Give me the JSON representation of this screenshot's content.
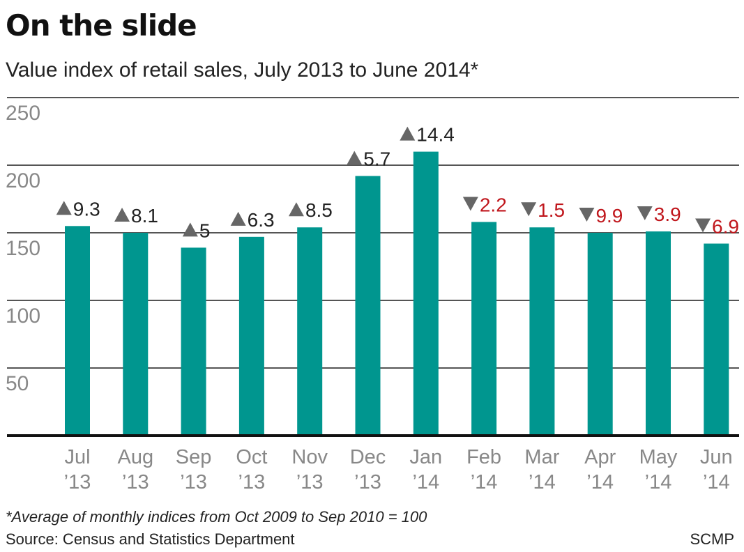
{
  "title": "On the slide",
  "subtitle": "Value index of retail sales, July 2013 to June 2014*",
  "footnote": "*Average of monthly indices from Oct 2009 to Sep 2010 = 100",
  "source": "Source: Census and Statistics Department",
  "credit": "SCMP",
  "colors": {
    "bar": "#00968f",
    "up_marker": "#666666",
    "down_marker": "#666666",
    "up_text": "#222222",
    "down_text": "#c0161c",
    "grid": "#555555",
    "axis_text": "#888888"
  },
  "chart_data": {
    "type": "bar",
    "categories": [
      [
        "Jul",
        "’13"
      ],
      [
        "Aug",
        "’13"
      ],
      [
        "Sep",
        "’13"
      ],
      [
        "Oct",
        "’13"
      ],
      [
        "Nov",
        "’13"
      ],
      [
        "Dec",
        "’13"
      ],
      [
        "Jan",
        "’14"
      ],
      [
        "Feb",
        "’14"
      ],
      [
        "Mar",
        "’14"
      ],
      [
        "Apr",
        "’14"
      ],
      [
        "May",
        "’14"
      ],
      [
        "Jun",
        "’14"
      ]
    ],
    "values": [
      155,
      150,
      139,
      147,
      154,
      192,
      210,
      158,
      154,
      150,
      151,
      142
    ],
    "changes": [
      {
        "direction": "up",
        "label": "9.3"
      },
      {
        "direction": "up",
        "label": "8.1"
      },
      {
        "direction": "up",
        "label": "5"
      },
      {
        "direction": "up",
        "label": "6.3"
      },
      {
        "direction": "up",
        "label": "8.5"
      },
      {
        "direction": "up",
        "label": "5.7"
      },
      {
        "direction": "up",
        "label": "14.4"
      },
      {
        "direction": "down",
        "label": "2.2"
      },
      {
        "direction": "down",
        "label": "1.5"
      },
      {
        "direction": "down",
        "label": "9.9"
      },
      {
        "direction": "down",
        "label": "3.9"
      },
      {
        "direction": "down",
        "label": "6.9"
      }
    ],
    "yticks": [
      50,
      100,
      150,
      200,
      250
    ],
    "ylim": [
      0,
      250
    ],
    "grid": true
  }
}
